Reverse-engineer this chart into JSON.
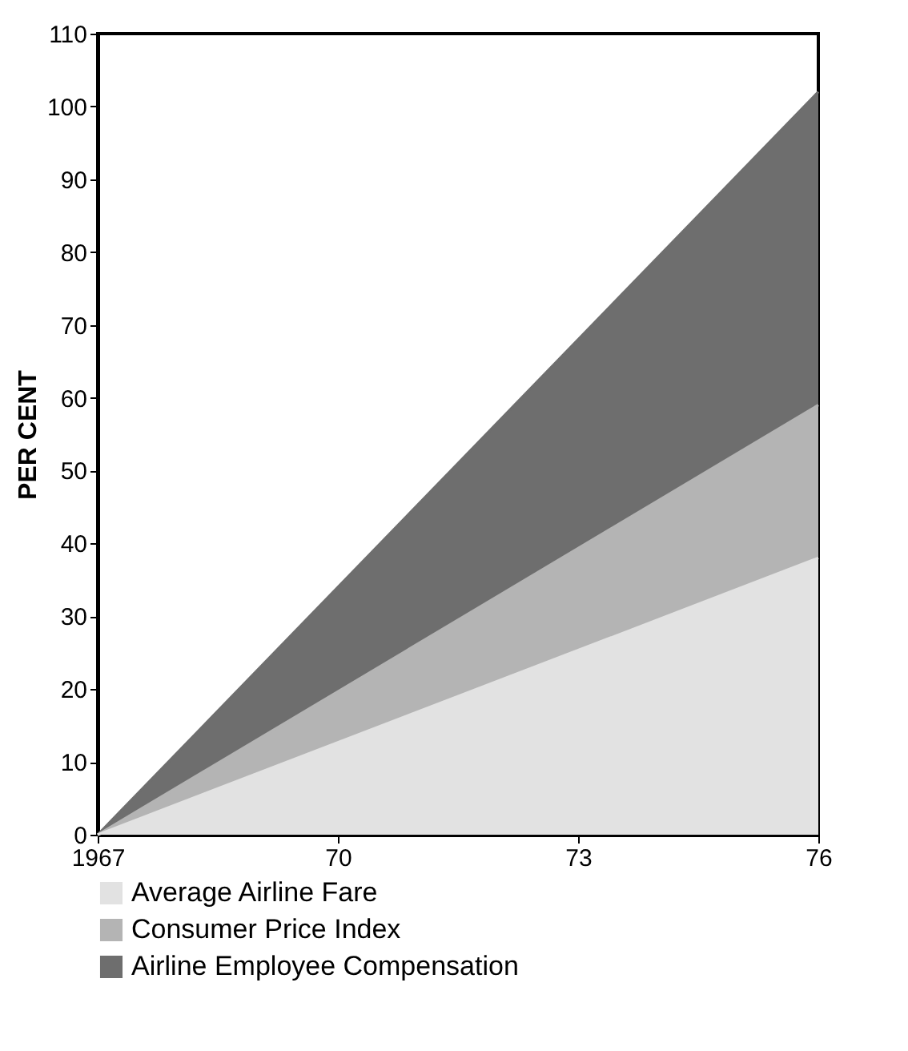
{
  "chart_data": {
    "type": "area",
    "ylabel": "PER CENT",
    "x": [
      1967,
      1976
    ],
    "series": [
      {
        "name": "Average Airline Fare",
        "color": "#e2e2e2",
        "values": [
          0,
          38
        ]
      },
      {
        "name": "Consumer Price Index",
        "color": "#b4b4b4",
        "values": [
          0,
          59
        ]
      },
      {
        "name": "Airline Employee Compensation",
        "color": "#6e6e6e",
        "values": [
          0,
          102
        ]
      }
    ],
    "xlim": [
      1967,
      1976
    ],
    "xticks": [
      1967,
      {
        "value": 1970,
        "label": "70"
      },
      {
        "value": 1973,
        "label": "73"
      },
      {
        "value": 1976,
        "label": "76"
      }
    ],
    "ylim": [
      0,
      110
    ],
    "yticks": [
      0,
      10,
      20,
      30,
      40,
      50,
      60,
      70,
      80,
      90,
      100,
      110
    ],
    "legend": "bottom left",
    "grid": false
  }
}
